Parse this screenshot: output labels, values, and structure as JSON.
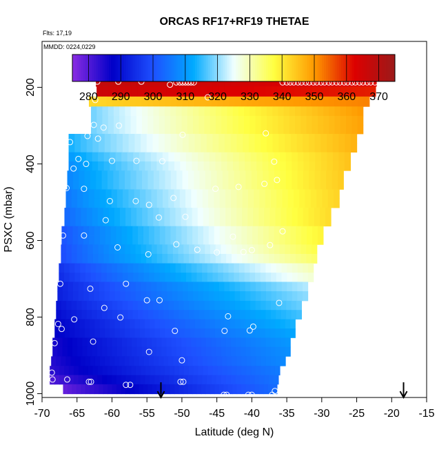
{
  "chart_data": {
    "type": "heatmap",
    "title": "ORCAS RF17+RF19 THETAE",
    "top_notes": [
      "Flts: 17,19",
      "MMDD: 0224,0229"
    ],
    "xlabel": "Latitude (deg N)",
    "ylabel": "PSXC (mbar)",
    "xlim": [
      -70,
      -15
    ],
    "ylim": [
      1010,
      80
    ],
    "x_ticks": [
      -70,
      -65,
      -60,
      -55,
      -50,
      -45,
      -40,
      -35,
      -30,
      -25,
      -20,
      -15
    ],
    "y_ticks": [
      200,
      400,
      600,
      800,
      1000
    ],
    "colorbar": {
      "range": [
        275,
        375
      ],
      "ticks": [
        280,
        290,
        300,
        310,
        320,
        330,
        340,
        350,
        360,
        370
      ],
      "colors": [
        "#8a2be2",
        "#0000c8",
        "#1e50ff",
        "#00aaff",
        "#f0ffff",
        "#ffff40",
        "#ff9900",
        "#dd0000",
        "#9b1a1a"
      ]
    },
    "layers": [
      {
        "p": 185,
        "x0": -62.3,
        "x1": -22.2,
        "v0": 368,
        "v1": 362
      },
      {
        "p": 210,
        "x0": -62.2,
        "x1": -22.3,
        "v0": 366,
        "v1": 360
      },
      {
        "p": 238,
        "x0": -63.3,
        "x1": -23.2,
        "v0": 342,
        "v1": 352
      },
      {
        "p": 262,
        "x0": -63.0,
        "x1": -24.1,
        "v0": 318,
        "v1": 350
      },
      {
        "p": 287,
        "x0": -63.0,
        "x1": -24.1,
        "v0": 318,
        "v1": 349
      },
      {
        "p": 310,
        "x0": -63.0,
        "x1": -24.1,
        "v0": 318,
        "v1": 349
      },
      {
        "p": 333,
        "x0": -66.2,
        "x1": -25.0,
        "v0": 313,
        "v1": 347
      },
      {
        "p": 357,
        "x0": -66.2,
        "x1": -25.0,
        "v0": 313,
        "v1": 347
      },
      {
        "p": 382,
        "x0": -66.2,
        "x1": -25.9,
        "v0": 310,
        "v1": 345
      },
      {
        "p": 405,
        "x0": -66.2,
        "x1": -25.9,
        "v0": 308,
        "v1": 345
      },
      {
        "p": 430,
        "x0": -66.4,
        "x1": -26.9,
        "v0": 307,
        "v1": 344
      },
      {
        "p": 455,
        "x0": -66.4,
        "x1": -26.9,
        "v0": 307,
        "v1": 344
      },
      {
        "p": 478,
        "x0": -66.6,
        "x1": -27.5,
        "v0": 305,
        "v1": 343
      },
      {
        "p": 502,
        "x0": -66.6,
        "x1": -27.5,
        "v0": 305,
        "v1": 343
      },
      {
        "p": 527,
        "x0": -66.8,
        "x1": -28.7,
        "v0": 303,
        "v1": 342
      },
      {
        "p": 550,
        "x0": -66.8,
        "x1": -28.7,
        "v0": 303,
        "v1": 342
      },
      {
        "p": 575,
        "x0": -67.2,
        "x1": -29.8,
        "v0": 300,
        "v1": 339
      },
      {
        "p": 598,
        "x0": -67.2,
        "x1": -29.8,
        "v0": 300,
        "v1": 339
      },
      {
        "p": 623,
        "x0": -67.3,
        "x1": -30.7,
        "v0": 299,
        "v1": 337
      },
      {
        "p": 647,
        "x0": -67.3,
        "x1": -30.7,
        "v0": 299,
        "v1": 335
      },
      {
        "p": 672,
        "x0": -67.6,
        "x1": -31.2,
        "v0": 295,
        "v1": 330
      },
      {
        "p": 696,
        "x0": -67.6,
        "x1": -31.2,
        "v0": 294,
        "v1": 328
      },
      {
        "p": 720,
        "x0": -67.8,
        "x1": -32.0,
        "v0": 292,
        "v1": 322
      },
      {
        "p": 745,
        "x0": -67.8,
        "x1": -32.0,
        "v0": 292,
        "v1": 320
      },
      {
        "p": 770,
        "x0": -68.0,
        "x1": -32.9,
        "v0": 290,
        "v1": 318
      },
      {
        "p": 793,
        "x0": -68.0,
        "x1": -32.9,
        "v0": 289,
        "v1": 316
      },
      {
        "p": 818,
        "x0": -68.2,
        "x1": -33.8,
        "v0": 287,
        "v1": 314
      },
      {
        "p": 842,
        "x0": -68.2,
        "x1": -33.8,
        "v0": 287,
        "v1": 312
      },
      {
        "p": 866,
        "x0": -68.5,
        "x1": -34.5,
        "v0": 285,
        "v1": 310
      },
      {
        "p": 890,
        "x0": -68.5,
        "x1": -34.5,
        "v0": 285,
        "v1": 309
      },
      {
        "p": 915,
        "x0": -68.7,
        "x1": -35.2,
        "v0": 284,
        "v1": 308
      },
      {
        "p": 940,
        "x0": -68.9,
        "x1": -36.0,
        "v0": 283,
        "v1": 306
      },
      {
        "p": 963,
        "x0": -68.9,
        "x1": -36.2,
        "v0": 280,
        "v1": 305
      },
      {
        "p": 988,
        "x0": -67.0,
        "x1": -36.4,
        "v0": 278,
        "v1": 304
      }
    ],
    "points": [
      [
        -62.1,
        185
      ],
      [
        -59.1,
        185
      ],
      [
        -55.8,
        185
      ],
      [
        -50.8,
        187
      ],
      [
        -50.3,
        187
      ],
      [
        -49.9,
        187
      ],
      [
        -49.5,
        187
      ],
      [
        -49.1,
        187
      ],
      [
        -48.7,
        187
      ],
      [
        -48.3,
        187
      ],
      [
        -35.6,
        187
      ],
      [
        -35.0,
        187
      ],
      [
        -34.5,
        187
      ],
      [
        -34.0,
        187
      ],
      [
        -33.4,
        187
      ],
      [
        -32.9,
        187
      ],
      [
        -32.3,
        187
      ],
      [
        -31.8,
        187
      ],
      [
        -31.2,
        187
      ],
      [
        -30.7,
        187
      ],
      [
        -30.1,
        187
      ],
      [
        -29.6,
        187
      ],
      [
        -29.0,
        187
      ],
      [
        -28.5,
        187
      ],
      [
        -27.9,
        187
      ],
      [
        -27.4,
        187
      ],
      [
        -26.8,
        187
      ],
      [
        -26.3,
        187
      ],
      [
        -25.7,
        187
      ],
      [
        -25.2,
        187
      ],
      [
        -24.6,
        187
      ],
      [
        -24.1,
        187
      ],
      [
        -23.5,
        187
      ],
      [
        -23.0,
        187
      ],
      [
        -22.4,
        187
      ],
      [
        -51.7,
        193
      ],
      [
        -46.3,
        226
      ],
      [
        -62.4,
        233
      ],
      [
        -62.6,
        298
      ],
      [
        -63.5,
        327
      ],
      [
        -49.9,
        324
      ],
      [
        -38.0,
        320
      ],
      [
        -66.0,
        343
      ],
      [
        -61.2,
        305
      ],
      [
        -59.0,
        300
      ],
      [
        -62.0,
        334
      ],
      [
        -64.8,
        387
      ],
      [
        -65.5,
        412
      ],
      [
        -63.7,
        400
      ],
      [
        -60.0,
        392
      ],
      [
        -56.5,
        392
      ],
      [
        -52.8,
        393
      ],
      [
        -36.8,
        394
      ],
      [
        -36.4,
        442
      ],
      [
        -38.2,
        452
      ],
      [
        -41.9,
        460
      ],
      [
        -45.2,
        465
      ],
      [
        -66.5,
        463
      ],
      [
        -64.0,
        465
      ],
      [
        -60.3,
        497
      ],
      [
        -56.6,
        497
      ],
      [
        -54.7,
        507
      ],
      [
        -51.2,
        489
      ],
      [
        -53.3,
        540
      ],
      [
        -49.5,
        538
      ],
      [
        -60.9,
        547
      ],
      [
        -35.6,
        576
      ],
      [
        -67.0,
        587
      ],
      [
        -64.0,
        587
      ],
      [
        -59.2,
        618
      ],
      [
        -54.8,
        636
      ],
      [
        -50.8,
        610
      ],
      [
        -47.8,
        624
      ],
      [
        -45.0,
        631
      ],
      [
        -42.7,
        590
      ],
      [
        -41.2,
        630
      ],
      [
        -40.0,
        625
      ],
      [
        -37.4,
        612
      ],
      [
        -67.4,
        713
      ],
      [
        -63.1,
        726
      ],
      [
        -58.0,
        713
      ],
      [
        -55.0,
        756
      ],
      [
        -53.2,
        756
      ],
      [
        -36.1,
        763
      ],
      [
        -67.7,
        818
      ],
      [
        -67.2,
        831
      ],
      [
        -65.4,
        806
      ],
      [
        -61.1,
        776
      ],
      [
        -58.8,
        801
      ],
      [
        -51.0,
        836
      ],
      [
        -43.9,
        836
      ],
      [
        -43.4,
        798
      ],
      [
        -40.3,
        835
      ],
      [
        -39.8,
        825
      ],
      [
        -68.2,
        868
      ],
      [
        -62.7,
        864
      ],
      [
        -54.7,
        891
      ],
      [
        -50.0,
        913
      ],
      [
        -68.6,
        945
      ],
      [
        -68.5,
        963
      ],
      [
        -66.4,
        963
      ],
      [
        -63.3,
        969
      ],
      [
        -63.0,
        969
      ],
      [
        -58.0,
        977
      ],
      [
        -57.4,
        977
      ],
      [
        -50.2,
        969
      ],
      [
        -49.8,
        969
      ],
      [
        -44.0,
        1003
      ],
      [
        -43.6,
        1003
      ],
      [
        -40.5,
        1003
      ],
      [
        -40.0,
        1003
      ],
      [
        -37.1,
        1003
      ],
      [
        -36.7,
        993
      ]
    ],
    "arrows_latitude": [
      -53.0,
      -18.3
    ]
  }
}
